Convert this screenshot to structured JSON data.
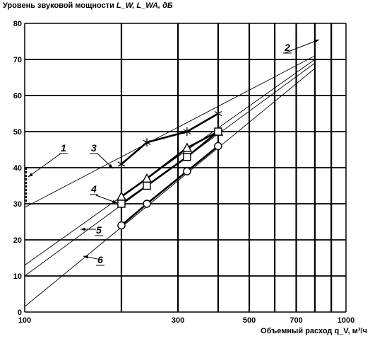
{
  "chart_data": {
    "type": "line",
    "ylabel": "Уровень звуковой мощности",
    "ylabel_symbols": "L_W, L_WA, дБ",
    "xlabel": "Объемный расход q_V, м³/ч",
    "x_scale": "log",
    "xlim": [
      100,
      1000
    ],
    "ylim": [
      0,
      80
    ],
    "x_ticks": [
      100,
      300,
      500,
      700,
      1000
    ],
    "y_ticks": [
      0,
      10,
      20,
      30,
      40,
      50,
      60,
      70,
      80
    ],
    "grid": true,
    "ref_lines": [
      {
        "label": "1",
        "points": [
          [
            100,
            29
          ],
          [
            800,
            71
          ]
        ]
      },
      {
        "label": "2",
        "points": [
          [
            100,
            13
          ],
          [
            800,
            70
          ]
        ]
      },
      {
        "label": "5",
        "points": [
          [
            100,
            10
          ],
          [
            800,
            69
          ]
        ]
      },
      {
        "label": "6",
        "points": [
          [
            100,
            1.5
          ],
          [
            800,
            67.5
          ]
        ]
      }
    ],
    "series": [
      {
        "label": "3",
        "marker": "star",
        "x": [
          200,
          240,
          320,
          400
        ],
        "y": [
          41,
          47,
          50,
          55
        ]
      },
      {
        "label": "4",
        "marker": "triangle",
        "x": [
          200,
          240,
          320,
          400
        ],
        "y": [
          32,
          37,
          45.5,
          50
        ]
      },
      {
        "label": "4",
        "marker": "square",
        "x": [
          200,
          240,
          320,
          400
        ],
        "y": [
          30,
          35,
          43,
          50
        ]
      },
      {
        "label": "",
        "marker": "circle",
        "x": [
          200,
          240,
          320,
          400
        ],
        "y": [
          24,
          30,
          39,
          46
        ]
      }
    ],
    "callouts": [
      "1",
      "2",
      "3",
      "4",
      "5",
      "6"
    ]
  }
}
